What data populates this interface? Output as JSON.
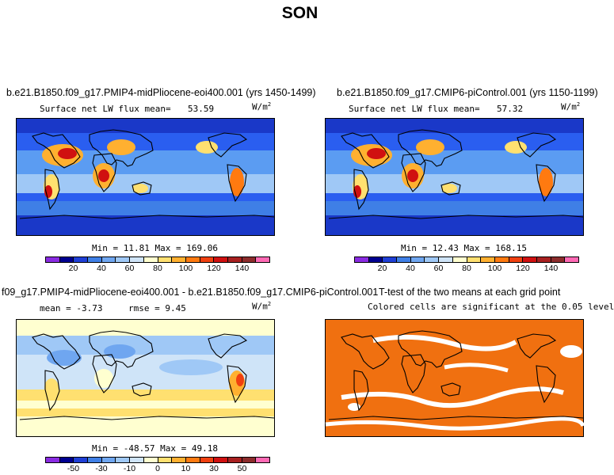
{
  "figure": {
    "season": "SON"
  },
  "panels": {
    "p1": {
      "title": "b.e21.B1850.f09_g17.PMIP4-midPliocene-eoi400.001 (yrs 1450-1499)",
      "stat_label": "Surface net LW flux mean=",
      "stat_value": "53.59",
      "units_base": "W/m",
      "units_exp": "2",
      "minmax_text": "Min =  11.81 Max = 169.06"
    },
    "p2": {
      "title": "b.e21.B1850.f09_g17.CMIP6-piControl.001 (yrs 1150-1199)",
      "stat_label": "Surface net LW flux mean=",
      "stat_value": "57.32",
      "units_base": "W/m",
      "units_exp": "2",
      "minmax_text": "Min =  12.43 Max = 168.15"
    },
    "p3": {
      "title": "f09_g17.PMIP4-midPliocene-eoi400.001 - b.e21.B1850.f09_g17.CMIP6-piControl.001",
      "mean_text": "mean =  -3.73",
      "rmse_text": "rmse =   9.45",
      "units_base": "W/m",
      "units_exp": "2",
      "minmax_text": "Min = -48.57 Max =  49.18"
    },
    "p4": {
      "title": "T-test of the two means at each grid point",
      "subtitle": "Colored cells are significant at the 0.05 level"
    }
  },
  "colorbars": {
    "mean": {
      "colors": [
        "#8a2be2",
        "#000090",
        "#1f3fd6",
        "#3f7fe6",
        "#6fa6f0",
        "#9fc8f6",
        "#cfe4f8",
        "#ffffd0",
        "#ffe070",
        "#ffb030",
        "#ff7a10",
        "#f04010",
        "#d01010",
        "#a82020",
        "#8c2c2c",
        "#ff69b4"
      ],
      "ticks": [
        "20",
        "40",
        "60",
        "80",
        "100",
        "120",
        "140"
      ]
    },
    "diff": {
      "colors": [
        "#8a2be2",
        "#000090",
        "#1f3fd6",
        "#3f7fe6",
        "#6fa6f0",
        "#9fc8f6",
        "#cfe4f8",
        "#ffffd0",
        "#ffe070",
        "#ffb030",
        "#ff7a10",
        "#f04010",
        "#d01010",
        "#a82020",
        "#8c2c2c",
        "#ff69b4"
      ],
      "ticks": [
        "-50",
        "-30",
        "-10",
        "0",
        "10",
        "30",
        "50"
      ]
    }
  },
  "chart_data": [
    {
      "type": "heatmap",
      "title": "b.e21.B1850.f09_g17.PMIP4-midPliocene-eoi400.001 (yrs 1450-1499)",
      "variable": "Surface net LW flux",
      "units": "W/m2",
      "mean": 53.59,
      "min": 11.81,
      "max": 169.06,
      "colorbar_ticks": [
        20,
        40,
        60,
        80,
        100,
        120,
        140
      ]
    },
    {
      "type": "heatmap",
      "title": "b.e21.B1850.f09_g17.CMIP6-piControl.001 (yrs 1150-1199)",
      "variable": "Surface net LW flux",
      "units": "W/m2",
      "mean": 57.32,
      "min": 12.43,
      "max": 168.15,
      "colorbar_ticks": [
        20,
        40,
        60,
        80,
        100,
        120,
        140
      ]
    },
    {
      "type": "heatmap",
      "title": "f09_g17.PMIP4-midPliocene-eoi400.001 - b.e21.B1850.f09_g17.CMIP6-piControl.001",
      "units": "W/m2",
      "mean": -3.73,
      "rmse": 9.45,
      "min": -48.57,
      "max": 49.18,
      "colorbar_ticks": [
        -50,
        -30,
        -10,
        0,
        10,
        30,
        50
      ]
    },
    {
      "type": "heatmap",
      "title": "T-test of the two means at each grid point",
      "subtitle": "Colored cells are significant at the 0.05 level",
      "significance_level": 0.05
    }
  ]
}
